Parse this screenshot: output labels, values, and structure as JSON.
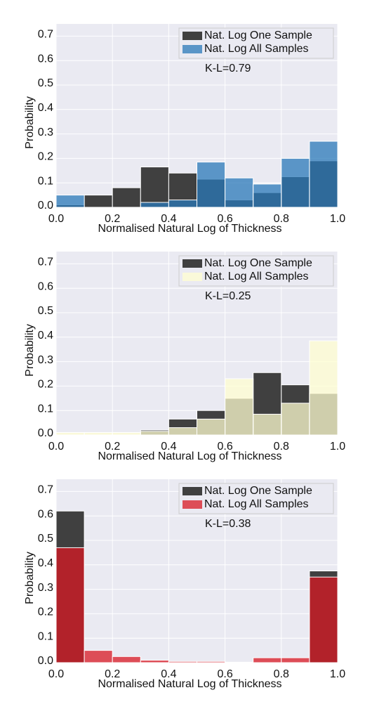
{
  "chart_data": [
    {
      "type": "histogram",
      "xlabel": "Normalised Natural Log of Thickness",
      "ylabel": "Probability",
      "annotation": "K-L=0.79",
      "bins": [
        0,
        0.1,
        0.2,
        0.3,
        0.4,
        0.5,
        0.6,
        0.7,
        0.8,
        0.9,
        1.0
      ],
      "series": [
        {
          "name": "Nat. Log One Sample",
          "color": "#404040",
          "alpha": 1,
          "values": [
            0.01,
            0.05,
            0.08,
            0.165,
            0.14,
            0.115,
            0.03,
            0.06,
            0.125,
            0.19
          ]
        },
        {
          "name": "Nat. Log All Samples",
          "color": "#2978b8",
          "alpha": 0.75,
          "values": [
            0.05,
            0,
            0,
            0.02,
            0.03,
            0.185,
            0.12,
            0.095,
            0.2,
            0.27
          ]
        }
      ],
      "xlim": [
        0,
        1
      ],
      "ylim": [
        0,
        0.75
      ],
      "xticks": [
        {
          "value": 0,
          "label": "0.0"
        },
        0.2,
        0.4,
        0.6,
        0.8,
        {
          "value": 1,
          "label": "1.0"
        }
      ],
      "yticks": [
        {
          "value": 0,
          "label": "0.0"
        },
        0.1,
        0.2,
        0.3,
        0.4,
        0.5,
        0.6,
        0.7
      ],
      "grid": true,
      "legend": "upper right"
    },
    {
      "type": "histogram",
      "xlabel": "Normalised Natural Log of Thickness",
      "ylabel": "Probability",
      "annotation": "K-L=0.25",
      "bins": [
        0,
        0.1,
        0.2,
        0.3,
        0.4,
        0.5,
        0.6,
        0.7,
        0.8,
        0.9,
        1.0
      ],
      "series": [
        {
          "name": "Nat. Log One Sample",
          "color": "#404040",
          "alpha": 1,
          "values": [
            0,
            0,
            0,
            0.02,
            0.065,
            0.1,
            0.15,
            0.255,
            0.205,
            0.17
          ]
        },
        {
          "name": "Nat. Log All Samples",
          "color": "#fffdd0",
          "alpha": 0.75,
          "values": [
            0.01,
            0.01,
            0.01,
            0.015,
            0.03,
            0.065,
            0.23,
            0.085,
            0.13,
            0.385
          ]
        }
      ],
      "xlim": [
        0,
        1
      ],
      "ylim": [
        0,
        0.75
      ],
      "xticks": [
        {
          "value": 0,
          "label": "0.0"
        },
        0.2,
        0.4,
        0.6,
        0.8,
        {
          "value": 1,
          "label": "1.0"
        }
      ],
      "yticks": [
        {
          "value": 0,
          "label": "0.0"
        },
        0.1,
        0.2,
        0.3,
        0.4,
        0.5,
        0.6,
        0.7
      ],
      "grid": true,
      "legend": "upper right"
    },
    {
      "type": "histogram",
      "xlabel": "Normalised Natural Log of Thickness",
      "ylabel": "Probability",
      "annotation": "K-L=0.38",
      "bins": [
        0,
        0.1,
        0.2,
        0.3,
        0.4,
        0.5,
        0.6,
        0.7,
        0.8,
        0.9,
        1.0
      ],
      "series": [
        {
          "name": "Nat. Log One Sample",
          "color": "#404040",
          "alpha": 1,
          "values": [
            0.62,
            0,
            0,
            0,
            0,
            0,
            0,
            0,
            0,
            0.375
          ]
        },
        {
          "name": "Nat. Log All Samples",
          "color": "#d81823",
          "alpha": 0.75,
          "values": [
            0.47,
            0.05,
            0.025,
            0.01,
            0.005,
            0.005,
            0.002,
            0.02,
            0.02,
            0.35
          ]
        }
      ],
      "xlim": [
        0,
        1
      ],
      "ylim": [
        0,
        0.75
      ],
      "xticks": [
        {
          "value": 0,
          "label": "0.0"
        },
        0.2,
        0.4,
        0.6,
        0.8,
        {
          "value": 1,
          "label": "1.0"
        }
      ],
      "yticks": [
        {
          "value": 0,
          "label": "0.0"
        },
        0.1,
        0.2,
        0.3,
        0.4,
        0.5,
        0.6,
        0.7
      ],
      "grid": true,
      "legend": "upper right"
    }
  ]
}
